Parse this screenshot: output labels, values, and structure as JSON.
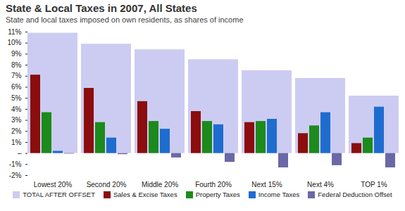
{
  "chart_data": {
    "type": "bar",
    "title": "State & Local Taxes in 2007, All States",
    "subtitle": "State and local taxes imposed on own residents, as shares of income",
    "categories": [
      "Lowest 20%",
      "Second 20%",
      "Middle 20%",
      "Fourth 20%",
      "Next 15%",
      "Next 4%",
      "TOP 1%"
    ],
    "series": [
      {
        "name": "TOTAL AFTER OFFSET",
        "type": "background",
        "color": "#ccccf2",
        "values": [
          10.9,
          9.9,
          9.4,
          8.5,
          7.5,
          6.8,
          5.2
        ]
      },
      {
        "name": "Sales & Excise Taxes",
        "type": "bar",
        "color": "#8b0d0d",
        "values": [
          7.1,
          5.9,
          4.7,
          3.8,
          2.8,
          1.8,
          0.9
        ]
      },
      {
        "name": "Property Taxes",
        "type": "bar",
        "color": "#1c8a1c",
        "values": [
          3.7,
          2.8,
          2.9,
          2.9,
          2.9,
          2.5,
          1.4
        ]
      },
      {
        "name": "Income Taxes",
        "type": "bar",
        "color": "#1f6ccf",
        "values": [
          0.2,
          1.4,
          2.2,
          2.6,
          3.1,
          3.7,
          4.2
        ]
      },
      {
        "name": "Federal Deduction Offset",
        "type": "bar",
        "color": "#6a68a6",
        "values": [
          -0.05,
          -0.1,
          -0.4,
          -0.8,
          -1.3,
          -1.1,
          -1.3
        ]
      }
    ],
    "ylim": [
      -2,
      11
    ],
    "yticks": [
      {
        "value": -2,
        "label": "-2%"
      },
      {
        "value": -1,
        "label": "-1%"
      },
      {
        "value": 0,
        "label": "–"
      },
      {
        "value": 1,
        "label": "1%"
      },
      {
        "value": 2,
        "label": "2%"
      },
      {
        "value": 3,
        "label": "3%"
      },
      {
        "value": 4,
        "label": "4%"
      },
      {
        "value": 5,
        "label": "5%"
      },
      {
        "value": 6,
        "label": "6%"
      },
      {
        "value": 7,
        "label": "7%"
      },
      {
        "value": 8,
        "label": "8%"
      },
      {
        "value": 9,
        "label": "9%"
      },
      {
        "value": 10,
        "label": "10%"
      },
      {
        "value": 11,
        "label": "11%"
      }
    ],
    "grid": false,
    "legend": "bottom"
  }
}
